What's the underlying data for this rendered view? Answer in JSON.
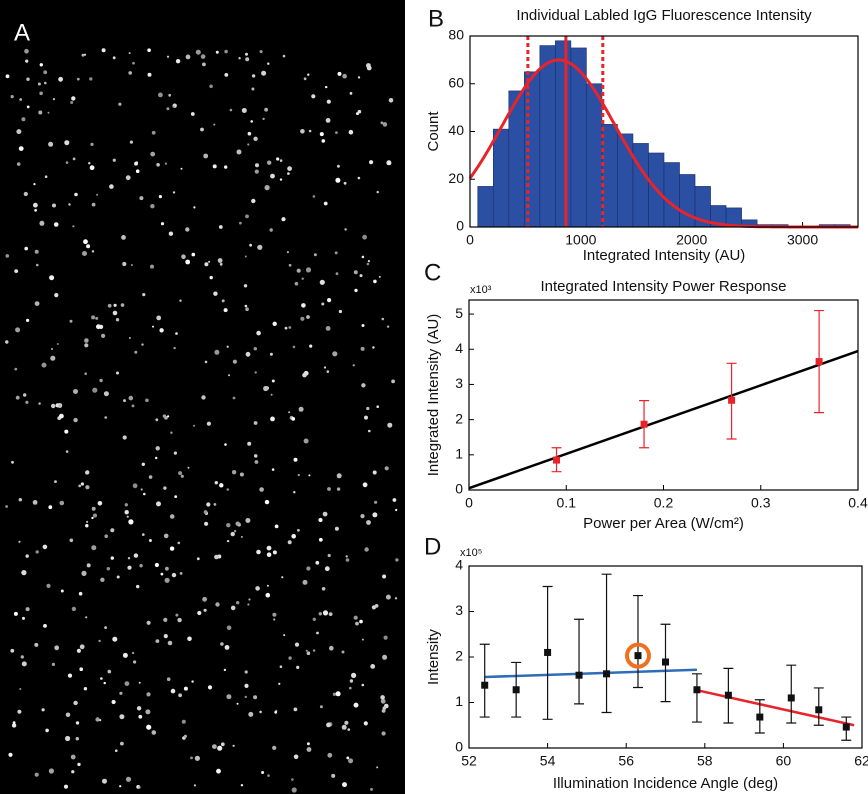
{
  "image": {
    "panel_label": "A"
  },
  "chart_data": [
    {
      "type": "histogram",
      "panel_label": "B",
      "title": "Individual Labled IgG Fluorescence Intensity",
      "x_label": "Integrated Intensity (AU)",
      "y_label": "Count",
      "bins": [
        70,
        210,
        350,
        490,
        630,
        770,
        910,
        1050,
        1190,
        1330,
        1470,
        1610,
        1750,
        1890,
        2030,
        2170,
        2310,
        2450,
        2590,
        2730,
        2870,
        3010,
        3150,
        3290,
        3430
      ],
      "values": [
        17,
        41,
        57,
        65,
        76,
        78,
        75,
        60,
        43,
        39,
        35,
        31,
        27,
        22,
        17,
        9,
        8,
        3,
        1,
        1,
        0,
        0,
        1,
        1
      ],
      "color": "#2b4fa3",
      "fit": {
        "amplitude": 70,
        "center": 800,
        "sigma": 510,
        "color": "#e8242a"
      },
      "mean_line": 865,
      "spread_lines": [
        522,
        1198
      ],
      "xlim": [
        0,
        3500
      ],
      "xticks": [
        0,
        1000,
        2000,
        3000
      ],
      "ylim": [
        0,
        80
      ],
      "yticks": [
        0,
        20,
        40,
        60,
        80
      ]
    },
    {
      "type": "scatter",
      "panel_label": "C",
      "title": "Integrated Intensity Power Response",
      "x_label": "Power per Area (W/cm²)",
      "y_label": "Integrated Intensity (AU)",
      "multiplier": "x10³",
      "x": [
        0.09,
        0.18,
        0.27,
        0.36
      ],
      "values": [
        0.85,
        1.87,
        2.55,
        3.65
      ],
      "error_minus": [
        0.33,
        0.67,
        1.1,
        1.45
      ],
      "error_plus": [
        0.35,
        0.67,
        1.05,
        1.45
      ],
      "color": "#e8242a",
      "fits": [
        {
          "x": [
            0,
            0.4
          ],
          "y": [
            0.05,
            3.95
          ],
          "color": "#000000"
        }
      ],
      "xlim": [
        0,
        0.4
      ],
      "xticks": [
        0,
        0.1,
        0.2,
        0.3,
        0.4
      ],
      "ylim": [
        0,
        5.4
      ],
      "yticks": [
        0,
        1,
        2,
        3,
        4,
        5
      ]
    },
    {
      "type": "scatter",
      "panel_label": "D",
      "x_label": "Illumination Incidence Angle (deg)",
      "y_label": "Intensity",
      "multiplier": "x10⁵",
      "x": [
        52.4,
        53.2,
        54.0,
        54.8,
        55.5,
        56.3,
        57.0,
        57.8,
        58.6,
        59.4,
        60.2,
        60.9,
        61.6
      ],
      "values": [
        1.38,
        1.28,
        2.1,
        1.6,
        1.63,
        2.03,
        1.89,
        1.28,
        1.16,
        0.68,
        1.1,
        0.84,
        0.46
      ],
      "error_minus": [
        0.7,
        0.6,
        1.47,
        0.63,
        0.85,
        0.7,
        0.87,
        0.71,
        0.61,
        0.35,
        0.55,
        0.34,
        0.29
      ],
      "error_plus": [
        0.9,
        0.6,
        1.45,
        1.23,
        2.19,
        1.32,
        0.83,
        0.35,
        0.59,
        0.38,
        0.72,
        0.48,
        0.22
      ],
      "color": "#111111",
      "fits": [
        {
          "x": [
            52.4,
            57.8
          ],
          "y": [
            1.56,
            1.72
          ],
          "color": "#2f6cb8"
        },
        {
          "x": [
            57.8,
            61.8
          ],
          "y": [
            1.27,
            0.5
          ],
          "color": "#e8242a"
        }
      ],
      "highlighted_point": 5,
      "highlight_color": "#f07020",
      "xlim": [
        52,
        62
      ],
      "xticks": [
        52,
        54,
        56,
        58,
        60,
        62
      ],
      "ylim": [
        0,
        4
      ],
      "yticks": [
        0,
        1,
        2,
        3,
        4
      ]
    }
  ]
}
